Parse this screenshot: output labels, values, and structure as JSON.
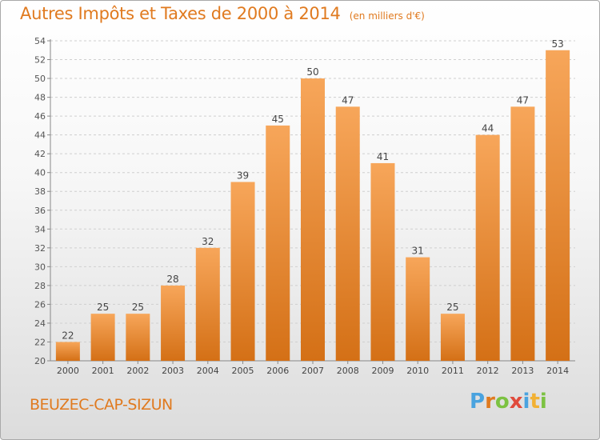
{
  "header": {
    "title": "Autres Impôts et Taxes de 2000 à 2014",
    "subtitle": "(en milliers d'€)"
  },
  "footer": {
    "commune": "BEUZEC-CAP-SIZUN",
    "brand_letters": [
      "P",
      "r",
      "o",
      "x",
      "i",
      "t",
      "i"
    ]
  },
  "colors": {
    "accent": "#e07a1f",
    "bar_top": "#f7a65a",
    "bar_bottom": "#d47016",
    "brand": [
      "#4aa3df",
      "#e07a1f",
      "#7cc242",
      "#e04b3c",
      "#4aa3df",
      "#f2b134",
      "#7cc242"
    ]
  },
  "chart_data": {
    "type": "bar",
    "title": "Autres Impôts et Taxes de 2000 à 2014",
    "subtitle": "(en milliers d'€)",
    "categories": [
      "2000",
      "2001",
      "2002",
      "2003",
      "2004",
      "2005",
      "2006",
      "2007",
      "2008",
      "2009",
      "2010",
      "2011",
      "2012",
      "2013",
      "2014"
    ],
    "values": [
      22,
      25,
      25,
      28,
      32,
      39,
      45,
      50,
      47,
      41,
      31,
      25,
      44,
      47,
      53
    ],
    "ylim": [
      20,
      54
    ],
    "yticks": [
      20,
      22,
      24,
      26,
      28,
      30,
      32,
      34,
      36,
      38,
      40,
      42,
      44,
      46,
      48,
      50,
      52,
      54
    ],
    "grid": true,
    "data_labels": true
  }
}
